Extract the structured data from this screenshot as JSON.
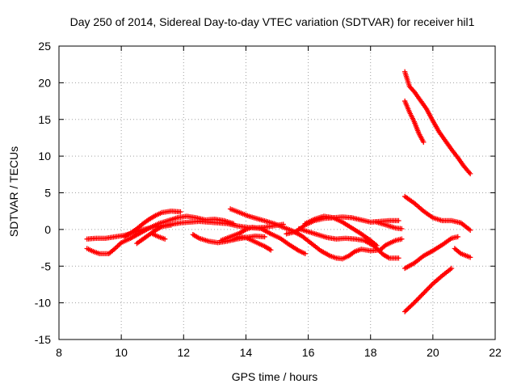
{
  "chart_data": {
    "type": "scatter",
    "title": "Day 250 of 2014, Sidereal Day-to-day VTEC variation (SDTVAR) for receiver hil1",
    "xlabel": "GPS time / hours",
    "ylabel": "SDTVAR / TECUs",
    "xlim": [
      8,
      22
    ],
    "ylim": [
      -15,
      25
    ],
    "xticks": [
      8,
      10,
      12,
      14,
      16,
      18,
      20,
      22
    ],
    "yticks": [
      -15,
      -10,
      -5,
      0,
      5,
      10,
      15,
      20,
      25
    ],
    "xtick_labels": [
      "8",
      "10",
      "12",
      "14",
      "16",
      "18",
      "20",
      "22"
    ],
    "ytick_labels": [
      "-15",
      "-10",
      "-5",
      "0",
      "5",
      "10",
      "15",
      "20",
      "25"
    ],
    "grid": true,
    "marker": "plus",
    "color": "#ff0000",
    "series": [
      {
        "name": "arc-1",
        "points": [
          [
            8.9,
            -1.3
          ],
          [
            9.2,
            -1.2
          ],
          [
            9.5,
            -1.2
          ],
          [
            9.8,
            -1.0
          ],
          [
            10.1,
            -0.8
          ],
          [
            10.4,
            -0.4
          ],
          [
            10.7,
            0.0
          ],
          [
            11.0,
            0.3
          ],
          [
            11.3,
            0.5
          ],
          [
            11.6,
            0.7
          ],
          [
            11.9,
            0.9
          ],
          [
            12.2,
            1.0
          ],
          [
            12.5,
            1.1
          ],
          [
            12.8,
            1.0
          ],
          [
            13.1,
            0.9
          ],
          [
            13.4,
            0.8
          ],
          [
            13.7,
            0.5
          ],
          [
            14.0,
            0.3
          ],
          [
            14.3,
            0.2
          ],
          [
            14.6,
            0.3
          ],
          [
            14.9,
            0.5
          ],
          [
            15.2,
            0.7
          ]
        ]
      },
      {
        "name": "arc-2",
        "points": [
          [
            8.9,
            -2.6
          ],
          [
            9.1,
            -3.0
          ],
          [
            9.3,
            -3.3
          ],
          [
            9.6,
            -3.3
          ],
          [
            9.8,
            -2.6
          ],
          [
            10.0,
            -1.8
          ],
          [
            10.3,
            -1.2
          ],
          [
            10.6,
            -0.5
          ],
          [
            10.9,
            0.2
          ],
          [
            11.2,
            0.8
          ],
          [
            11.5,
            1.2
          ],
          [
            11.8,
            1.6
          ],
          [
            12.1,
            1.8
          ],
          [
            12.4,
            1.6
          ],
          [
            12.7,
            1.3
          ],
          [
            13.0,
            1.4
          ],
          [
            13.3,
            1.2
          ],
          [
            13.6,
            0.8
          ]
        ]
      },
      {
        "name": "arc-3",
        "points": [
          [
            10.1,
            -1.0
          ],
          [
            10.3,
            -0.5
          ],
          [
            10.5,
            0.1
          ],
          [
            10.7,
            0.8
          ],
          [
            10.9,
            1.4
          ],
          [
            11.1,
            1.9
          ],
          [
            11.3,
            2.3
          ],
          [
            11.6,
            2.5
          ],
          [
            11.9,
            2.4
          ]
        ]
      },
      {
        "name": "arc-4",
        "points": [
          [
            10.5,
            -1.9
          ],
          [
            10.7,
            -1.3
          ],
          [
            10.9,
            -0.7
          ],
          [
            11.1,
            -0.1
          ],
          [
            11.3,
            0.4
          ],
          [
            11.6,
            0.6
          ]
        ]
      },
      {
        "name": "arc-5",
        "points": [
          [
            11.0,
            -0.6
          ],
          [
            11.2,
            -1.0
          ],
          [
            11.4,
            -1.3
          ]
        ]
      },
      {
        "name": "arc-6",
        "points": [
          [
            12.3,
            -0.7
          ],
          [
            12.5,
            -1.2
          ],
          [
            12.8,
            -1.6
          ],
          [
            13.1,
            -1.8
          ],
          [
            13.4,
            -1.6
          ],
          [
            13.7,
            -1.3
          ],
          [
            14.0,
            -1.1
          ],
          [
            14.3,
            -0.9
          ],
          [
            14.6,
            -1.0
          ]
        ]
      },
      {
        "name": "arc-7",
        "points": [
          [
            13.2,
            -1.5
          ],
          [
            13.5,
            -1.0
          ],
          [
            13.8,
            -0.5
          ],
          [
            14.0,
            0.0
          ],
          [
            14.2,
            0.3
          ],
          [
            14.5,
            0.1
          ],
          [
            14.8,
            -0.6
          ],
          [
            15.1,
            -1.2
          ],
          [
            15.4,
            -2.1
          ],
          [
            15.7,
            -2.9
          ],
          [
            15.9,
            -3.3
          ]
        ]
      },
      {
        "name": "arc-8",
        "points": [
          [
            13.6,
            -1.4
          ],
          [
            13.8,
            -1.0
          ],
          [
            14.0,
            -1.1
          ],
          [
            14.3,
            -1.7
          ],
          [
            14.6,
            -2.3
          ],
          [
            14.8,
            -2.8
          ]
        ]
      },
      {
        "name": "arc-9",
        "points": [
          [
            13.5,
            2.8
          ],
          [
            13.8,
            2.3
          ],
          [
            14.1,
            1.8
          ],
          [
            14.5,
            1.3
          ],
          [
            14.9,
            0.8
          ],
          [
            15.2,
            0.3
          ],
          [
            15.5,
            -0.2
          ],
          [
            15.8,
            -0.9
          ],
          [
            16.1,
            -1.9
          ],
          [
            16.4,
            -2.9
          ],
          [
            16.7,
            -3.6
          ],
          [
            16.9,
            -3.9
          ],
          [
            17.1,
            -4.0
          ],
          [
            17.3,
            -3.6
          ],
          [
            17.5,
            -3.0
          ],
          [
            17.7,
            -2.7
          ],
          [
            18.0,
            -2.9
          ],
          [
            18.3,
            -2.8
          ],
          [
            18.5,
            -2.1
          ],
          [
            18.8,
            -1.5
          ],
          [
            19.0,
            -1.3
          ]
        ]
      },
      {
        "name": "arc-10",
        "points": [
          [
            15.3,
            -0.6
          ],
          [
            15.6,
            -0.3
          ],
          [
            15.9,
            0.6
          ],
          [
            16.2,
            1.2
          ],
          [
            16.5,
            1.5
          ],
          [
            16.8,
            1.6
          ],
          [
            17.1,
            1.7
          ],
          [
            17.4,
            1.6
          ],
          [
            17.7,
            1.3
          ],
          [
            18.0,
            1.0
          ],
          [
            18.3,
            1.1
          ],
          [
            18.6,
            1.2
          ],
          [
            18.9,
            1.2
          ]
        ]
      },
      {
        "name": "arc-11",
        "points": [
          [
            15.9,
            0.8
          ],
          [
            16.2,
            1.4
          ],
          [
            16.5,
            1.8
          ],
          [
            16.8,
            1.6
          ],
          [
            17.1,
            1.0
          ],
          [
            17.4,
            0.2
          ],
          [
            17.7,
            -0.6
          ],
          [
            18.0,
            -1.5
          ],
          [
            18.2,
            -2.2
          ]
        ]
      },
      {
        "name": "arc-12",
        "points": [
          [
            15.7,
            0.1
          ],
          [
            16.0,
            -0.3
          ],
          [
            16.3,
            -0.7
          ],
          [
            16.6,
            -1.1
          ],
          [
            16.9,
            -1.3
          ],
          [
            17.2,
            -1.2
          ],
          [
            17.5,
            -1.3
          ],
          [
            17.8,
            -1.5
          ],
          [
            18.1,
            -2.2
          ],
          [
            18.4,
            -3.4
          ],
          [
            18.6,
            -3.9
          ],
          [
            18.9,
            -3.9
          ]
        ]
      },
      {
        "name": "arc-13",
        "points": [
          [
            18.2,
            1.0
          ],
          [
            18.5,
            0.6
          ],
          [
            18.8,
            0.2
          ],
          [
            19.0,
            0.1
          ]
        ]
      },
      {
        "name": "arc-14",
        "points": [
          [
            19.1,
            21.5
          ],
          [
            19.25,
            19.5
          ],
          [
            19.4,
            18.8
          ],
          [
            19.6,
            17.6
          ],
          [
            19.8,
            16.4
          ],
          [
            20.0,
            14.8
          ],
          [
            20.2,
            13.3
          ],
          [
            20.4,
            12.1
          ],
          [
            20.6,
            10.9
          ],
          [
            20.8,
            9.8
          ],
          [
            21.0,
            8.6
          ],
          [
            21.2,
            7.6
          ]
        ]
      },
      {
        "name": "arc-15",
        "points": [
          [
            19.1,
            17.5
          ],
          [
            19.25,
            16.0
          ],
          [
            19.4,
            14.7
          ],
          [
            19.55,
            13.1
          ],
          [
            19.7,
            11.9
          ]
        ]
      },
      {
        "name": "arc-16",
        "points": [
          [
            19.1,
            4.5
          ],
          [
            19.4,
            3.6
          ],
          [
            19.7,
            2.5
          ],
          [
            20.0,
            1.6
          ],
          [
            20.3,
            1.2
          ],
          [
            20.6,
            1.2
          ],
          [
            20.9,
            0.9
          ],
          [
            21.2,
            -0.1
          ]
        ]
      },
      {
        "name": "arc-17",
        "points": [
          [
            19.1,
            -5.3
          ],
          [
            19.4,
            -4.6
          ],
          [
            19.7,
            -3.6
          ],
          [
            20.0,
            -2.9
          ],
          [
            20.3,
            -2.1
          ],
          [
            20.6,
            -1.2
          ],
          [
            20.8,
            -1.0
          ]
        ]
      },
      {
        "name": "arc-18",
        "points": [
          [
            20.7,
            -2.6
          ],
          [
            20.9,
            -3.3
          ],
          [
            21.2,
            -3.8
          ]
        ]
      },
      {
        "name": "arc-19",
        "points": [
          [
            19.1,
            -11.2
          ],
          [
            19.4,
            -10.0
          ],
          [
            19.7,
            -8.7
          ],
          [
            20.0,
            -7.4
          ],
          [
            20.3,
            -6.3
          ],
          [
            20.6,
            -5.3
          ]
        ]
      }
    ]
  }
}
